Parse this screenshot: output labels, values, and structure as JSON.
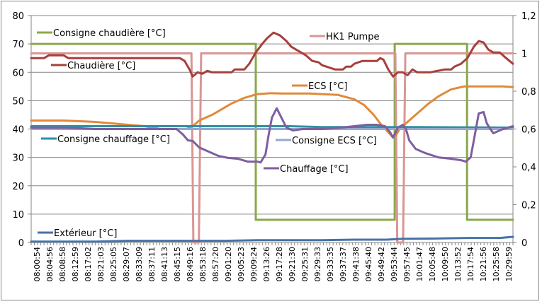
{
  "chart_data": {
    "type": "line",
    "title": "",
    "xlabel": "",
    "ylabel": "",
    "y2label": "",
    "ylim": [
      0,
      80
    ],
    "y2lim": [
      0,
      1.2
    ],
    "yticks": [
      "0",
      "10",
      "20",
      "30",
      "40",
      "50",
      "60",
      "70",
      "80"
    ],
    "y2ticks": [
      "0",
      "0,2",
      "0,4",
      "0,6",
      "0,8",
      "1",
      "1,2"
    ],
    "grid": true,
    "xrange_minutes": [
      0,
      149.1
    ],
    "x_tick_labels": [
      "08:00:54",
      "08:04:56",
      "08:08:58",
      "08:12:59",
      "08:17:02",
      "08:21:03",
      "08:25:05",
      "08:29:07",
      "08:33:09",
      "08:37:11",
      "08:41:13",
      "08:45:15",
      "08:49:16",
      "08:53:18",
      "08:57:20",
      "09:01:20",
      "09:05:23",
      "09:09:24",
      "09:13:26",
      "09:17:28",
      "09:21:30",
      "09:25:31",
      "09:29:33",
      "09:33:35",
      "09:37:37",
      "09:41:38",
      "09:45:40",
      "09:49:42",
      "09:53:44",
      "09:57:45",
      "10:01:47",
      "10:05:48",
      "10:09:50",
      "10:13:52",
      "10:17:54",
      "10:21:56",
      "10:25:58",
      "10:29:59"
    ],
    "x_unit": "minutes since 08:00:54",
    "series": [
      {
        "name": "Consigne chaudière [°C]",
        "axis": "left",
        "color": "#8aa84b",
        "x": [
          0,
          69.5,
          69.5,
          112.5,
          112.5,
          134.9,
          134.9,
          149.1
        ],
        "y": [
          70,
          70,
          8,
          8,
          70,
          70,
          8,
          8
        ]
      },
      {
        "name": "HK1 Pumpe",
        "axis": "right",
        "color": "#d99694",
        "x": [
          0,
          49.6,
          50.2,
          51.9,
          52.6,
          112.7,
          113.3,
          115.1,
          115.8,
          149.1
        ],
        "y": [
          1,
          1,
          0,
          0,
          1,
          1,
          0,
          0,
          1,
          1
        ]
      },
      {
        "name": "Chaudière [°C]",
        "axis": "left",
        "color": "#a5403d",
        "x": [
          0,
          4,
          5.5,
          10,
          11.5,
          30,
          46,
          47.5,
          49,
          50,
          51.5,
          53,
          54.5,
          56,
          57.5,
          62,
          63,
          66,
          67.5,
          69.5,
          71.5,
          73,
          75,
          77,
          79,
          80.5,
          82,
          85,
          87,
          89,
          90,
          94,
          96.5,
          97.5,
          99,
          100,
          102.5,
          105.5,
          107,
          108,
          109,
          110.5,
          112,
          113.5,
          115,
          116.5,
          118,
          119.5,
          121,
          122,
          123.5,
          128,
          130,
          131,
          133,
          135,
          137,
          138.5,
          140,
          141.5,
          143,
          145,
          147,
          149.1
        ],
        "y": [
          65,
          65,
          66,
          66,
          65,
          65,
          65,
          64,
          61,
          58.5,
          60,
          59.5,
          60.5,
          60,
          60,
          60,
          61,
          61,
          63,
          67,
          70,
          72,
          74,
          73,
          71,
          69,
          68,
          66,
          64,
          63.5,
          62.5,
          61,
          61,
          62,
          62,
          63,
          64,
          64,
          64,
          65,
          64.5,
          61,
          58.5,
          60,
          60,
          59,
          61,
          60,
          60,
          60,
          60,
          61,
          61,
          62,
          63,
          65,
          69,
          71,
          70.5,
          68,
          67,
          67,
          65,
          63
        ]
      },
      {
        "name": "ECS [°C]",
        "axis": "left",
        "color": "#e08a3b",
        "x": [
          0,
          10,
          20,
          25,
          30,
          35,
          40,
          45,
          48,
          50,
          52,
          54,
          56,
          59,
          62,
          66,
          70,
          74,
          78,
          82,
          86,
          90,
          95,
          100,
          103,
          106,
          108,
          110,
          112,
          113,
          114,
          116,
          118,
          120,
          123,
          126,
          130,
          134,
          138,
          142,
          146,
          149.1
        ],
        "y": [
          43,
          43,
          42.5,
          42,
          41.5,
          41,
          40,
          40,
          40,
          41,
          43,
          44,
          45,
          47,
          49,
          51,
          52.3,
          52.6,
          52.5,
          52.5,
          52.5,
          52.3,
          52,
          50.5,
          48.5,
          45,
          42,
          39.5,
          37,
          38,
          40,
          42,
          44,
          46,
          49,
          51.5,
          54,
          55,
          55,
          55,
          55,
          54.8
        ]
      },
      {
        "name": "Consigne chauffage [°C]",
        "axis": "left",
        "color": "#2e8fa3",
        "x": [
          0,
          60,
          80,
          90,
          120,
          149.1
        ],
        "y": [
          41,
          41,
          41,
          40.7,
          40.7,
          40.5
        ]
      },
      {
        "name": "Consigne ECS [°C]",
        "axis": "left",
        "color": "#93a9cf",
        "x": [
          0,
          149.1
        ],
        "y": [
          40,
          40
        ]
      },
      {
        "name": "Chauffage [°C]",
        "axis": "left",
        "color": "#7d5fa0",
        "x": [
          0,
          10,
          20,
          30,
          40,
          45,
          47,
          48.5,
          50,
          52,
          54,
          56,
          58,
          61,
          64,
          67,
          70,
          71,
          72.5,
          73.5,
          74.5,
          76,
          77,
          79,
          81,
          84,
          90,
          96,
          100,
          104,
          107,
          109.5,
          111,
          112,
          113.5,
          115,
          116,
          117,
          119,
          122,
          126,
          130,
          133,
          134.5,
          136,
          137,
          138.5,
          140,
          141,
          143,
          146,
          149.1
        ],
        "y": [
          40.5,
          40.5,
          40,
          40,
          40,
          40,
          38,
          36,
          35.8,
          33.5,
          32.5,
          31.5,
          30.5,
          29.8,
          29.5,
          28.5,
          28.5,
          28.2,
          31,
          38,
          44,
          47.3,
          45,
          40.5,
          39.5,
          40,
          40,
          40.5,
          41,
          41.5,
          41.5,
          41,
          39,
          37,
          40.5,
          41.5,
          40,
          36,
          33,
          31.5,
          30,
          29.5,
          29,
          28.5,
          30,
          36,
          45.5,
          46,
          42,
          38.5,
          40,
          41
        ]
      },
      {
        "name": "Extérieur [°C]",
        "axis": "left",
        "color": "#4672a8",
        "x": [
          0,
          20,
          30,
          60,
          70,
          90,
          100,
          110,
          115,
          125,
          135,
          145,
          149.1
        ],
        "y": [
          0.3,
          0.3,
          0.6,
          0.6,
          0.8,
          0.8,
          1.0,
          1.0,
          1.3,
          1.4,
          1.6,
          1.6,
          2.0
        ]
      }
    ],
    "legend": [
      {
        "label": "Consigne chaudière [°C]",
        "series": 0,
        "placement": "top-left"
      },
      {
        "label": "Chaudière [°C]",
        "series": 2,
        "placement": "upper-left"
      },
      {
        "label": "HK1 Pumpe",
        "series": 1,
        "placement": "top-center"
      },
      {
        "label": "ECS [°C]",
        "series": 3,
        "placement": "upper-center"
      },
      {
        "label": "Consigne chauffage [°C]",
        "series": 4,
        "placement": "middle-left"
      },
      {
        "label": "Consigne ECS [°C]",
        "series": 5,
        "placement": "middle-center"
      },
      {
        "label": "Chauffage [°C]",
        "series": 6,
        "placement": "center"
      },
      {
        "label": "Extérieur [°C]",
        "series": 7,
        "placement": "bottom-left"
      }
    ]
  }
}
